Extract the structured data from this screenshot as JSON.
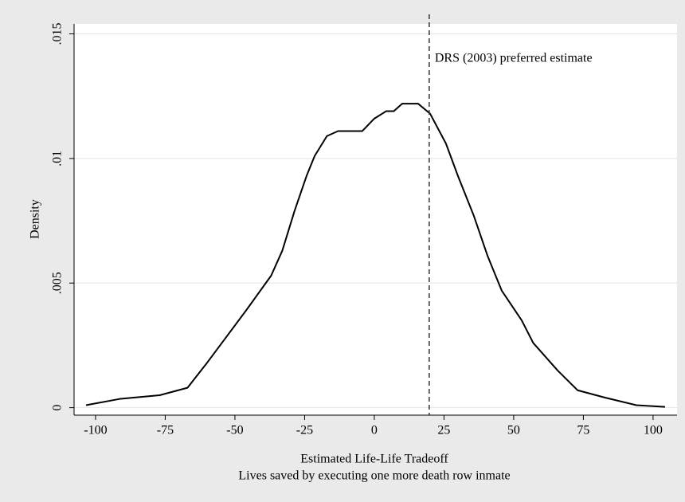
{
  "chart_data": {
    "type": "line",
    "xlabel": "Estimated Life-Life Tradeoff",
    "xlabel_sub": "Lives saved by executing one more death row inmate",
    "ylabel": "Density",
    "x": [
      -103.4,
      -91.4,
      -77,
      -67,
      -60,
      -54,
      -46,
      -37,
      -33,
      -28.6,
      -24.3,
      -21.4,
      -17,
      -13,
      -10,
      -4.3,
      0,
      4.3,
      7,
      10,
      15.7,
      20,
      25.7,
      30,
      35.7,
      40.6,
      45.7,
      52.9,
      57,
      65.7,
      72.9,
      82.9,
      94,
      104.3
    ],
    "series": [
      {
        "color": "#000000",
        "values": [
          0.0001,
          0.00035,
          0.0005,
          0.0008,
          0.0018,
          0.0027,
          0.0039,
          0.0053,
          0.0063,
          0.0079,
          0.0093,
          0.0101,
          0.0109,
          0.0111,
          0.0111,
          0.0111,
          0.0116,
          0.0119,
          0.0119,
          0.0122,
          0.0122,
          0.0118,
          0.0106,
          0.0093,
          0.0077,
          0.0061,
          0.0047,
          0.0035,
          0.0026,
          0.0015,
          0.0007,
          0.0004,
          0.0001,
          3e-05
        ]
      }
    ],
    "xlim": [
      -107.7,
      108.6
    ],
    "xticks": [
      -100,
      -75,
      -50,
      -25,
      0,
      25,
      50,
      75,
      100
    ],
    "ylim": [
      -0.0003,
      0.0154
    ],
    "yticks": [
      0,
      {
        "value": 0.005,
        "label": ".005"
      },
      {
        "value": 0.01,
        "label": ".01"
      },
      {
        "value": 0.015,
        "label": ".015"
      }
    ],
    "grid": true,
    "reference_line": {
      "x": 19.7,
      "label": "DRS (2003) preferred estimate"
    }
  }
}
